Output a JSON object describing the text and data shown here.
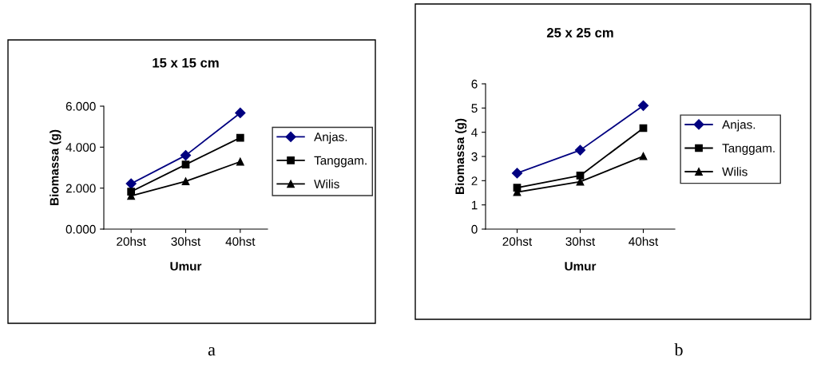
{
  "chart_data": [
    {
      "type": "line",
      "title": "15 x 15 cm",
      "xlabel": "Umur",
      "ylabel": "Biomassa (g)",
      "categories": [
        "20hst",
        "30hst",
        "40hst"
      ],
      "series": [
        {
          "name": "Anjas.",
          "color": "#000080",
          "marker": "diamond",
          "values": [
            2.22,
            3.6,
            5.67
          ]
        },
        {
          "name": "Tanggam.",
          "color": "#000000",
          "marker": "square",
          "values": [
            1.83,
            3.15,
            4.46
          ]
        },
        {
          "name": "Wilis",
          "color": "#000000",
          "marker": "triangle",
          "values": [
            1.62,
            2.33,
            3.29
          ]
        }
      ],
      "ylim": [
        0,
        6
      ],
      "yticks": [
        {
          "value": 0,
          "label": "0.000"
        },
        {
          "value": 2,
          "label": "2.000"
        },
        {
          "value": 4,
          "label": "4.000"
        },
        {
          "value": 6,
          "label": "6.000"
        }
      ],
      "legend": "right",
      "grid": false,
      "annotations": [
        "a"
      ]
    },
    {
      "type": "line",
      "title": "25 x 25 cm",
      "xlabel": "Umur",
      "ylabel": "Biomassa (g)",
      "categories": [
        "20hst",
        "30hst",
        "40hst"
      ],
      "series": [
        {
          "name": "Anjas.",
          "color": "#000080",
          "marker": "diamond",
          "values": [
            2.31,
            3.26,
            5.1
          ]
        },
        {
          "name": "Tanggam.",
          "color": "#000000",
          "marker": "square",
          "values": [
            1.71,
            2.21,
            4.17
          ]
        },
        {
          "name": "Wilis",
          "color": "#000000",
          "marker": "triangle",
          "values": [
            1.53,
            1.96,
            3.01
          ]
        }
      ],
      "ylim": [
        0,
        6
      ],
      "yticks": [
        0,
        1,
        2,
        3,
        4,
        5,
        6
      ],
      "legend": "right",
      "grid": false,
      "annotations": [
        "b"
      ]
    }
  ]
}
